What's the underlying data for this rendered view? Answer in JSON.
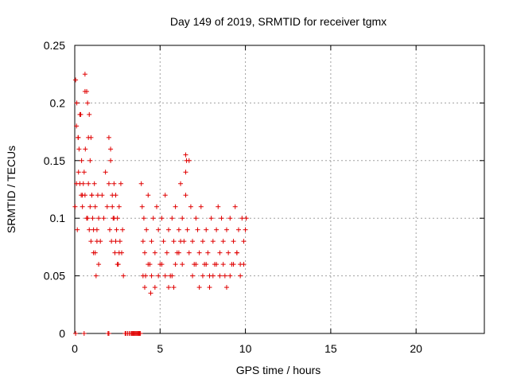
{
  "chart_data": {
    "type": "scatter",
    "title": "Day 149 of 2019, SRMTID for receiver tgmx",
    "xlabel": "GPS time / hours",
    "ylabel": "SRMTID / TECUs",
    "xlim": [
      0,
      24
    ],
    "ylim": [
      0,
      0.25
    ],
    "xticks": [
      0,
      5,
      10,
      15,
      20
    ],
    "xtick_labels": [
      "0",
      "5",
      "10",
      "15",
      "20"
    ],
    "yticks": [
      0,
      0.05,
      0.1,
      0.15,
      0.2,
      0.25
    ],
    "ytick_labels": [
      "0",
      "0.05",
      "0.1",
      "0.15",
      "0.2",
      "0.25"
    ],
    "grid": true,
    "marker": "+",
    "color": "#e00000",
    "series": [
      {
        "name": "SRMTID",
        "x": [
          0.02,
          0.05,
          0.1,
          0.12,
          0.15,
          0.2,
          0.22,
          0.25,
          0.3,
          0.35,
          0.38,
          0.4,
          0.45,
          0.5,
          0.55,
          0.6,
          0.62,
          0.7,
          0.75,
          0.8,
          0.85,
          0.9,
          0.95,
          1.0,
          1.05,
          1.1,
          1.15,
          1.2,
          1.25,
          1.3,
          1.35,
          1.4,
          1.5,
          1.6,
          1.7,
          1.8,
          1.9,
          2.0,
          2.05,
          2.1,
          2.15,
          2.2,
          2.25,
          2.3,
          2.35,
          2.4,
          2.45,
          2.5,
          2.55,
          2.6,
          2.65,
          2.7,
          2.75,
          2.8,
          2.85,
          3.1,
          3.2,
          3.3,
          3.4,
          3.5,
          3.6,
          3.7,
          3.8,
          3.85,
          3.9,
          3.95,
          4.0,
          4.05,
          4.1,
          4.15,
          4.2,
          4.3,
          4.4,
          4.5,
          4.6,
          4.7,
          4.8,
          4.9,
          5.0,
          5.1,
          5.2,
          5.3,
          5.4,
          5.5,
          5.6,
          5.7,
          5.8,
          5.9,
          6.0,
          6.1,
          6.2,
          6.3,
          6.4,
          6.5,
          6.6,
          6.7,
          6.8,
          6.9,
          7.0,
          7.1,
          7.2,
          7.3,
          7.4,
          7.5,
          7.6,
          7.7,
          7.8,
          7.9,
          8.0,
          8.1,
          8.2,
          8.3,
          8.4,
          8.5,
          8.6,
          8.7,
          8.8,
          8.9,
          9.0,
          9.1,
          9.2,
          9.3,
          9.4,
          9.5,
          9.6,
          9.7,
          9.8,
          9.9,
          10.0,
          10.05,
          0.1,
          0.2,
          0.3,
          0.45,
          0.6,
          0.7,
          0.8,
          0.9,
          1.0,
          1.1,
          1.2,
          1.3,
          1.4,
          2.0,
          2.1,
          2.2,
          2.3,
          2.4,
          2.5,
          2.6,
          4.0,
          4.1,
          4.3,
          4.5,
          4.7,
          4.9,
          5.1,
          5.3,
          5.5,
          5.7,
          5.9,
          6.1,
          6.2,
          6.3,
          6.5,
          6.7,
          6.9,
          7.1,
          7.3,
          7.5,
          7.7,
          7.9,
          8.1,
          8.3,
          8.5,
          8.7,
          8.9,
          9.1,
          9.3,
          9.5,
          9.7,
          9.9,
          0.6,
          0.75,
          0.85,
          0.95,
          6.5,
          6.55,
          5.8,
          4.45,
          3.2,
          3.35,
          3.45,
          3.55,
          3.65,
          3.75,
          3.0,
          3.1,
          2.95,
          2.0,
          0.05,
          0.55,
          1.95
        ],
        "y": [
          0.11,
          0.22,
          0.18,
          0.2,
          0.09,
          0.17,
          0.14,
          0.16,
          0.13,
          0.19,
          0.12,
          0.15,
          0.11,
          0.13,
          0.14,
          0.12,
          0.16,
          0.21,
          0.1,
          0.13,
          0.09,
          0.11,
          0.08,
          0.12,
          0.1,
          0.07,
          0.13,
          0.11,
          0.05,
          0.09,
          0.12,
          0.1,
          0.08,
          0.12,
          0.1,
          0.14,
          0.11,
          0.13,
          0.09,
          0.15,
          0.08,
          0.11,
          0.1,
          0.13,
          0.07,
          0.12,
          0.09,
          0.1,
          0.06,
          0.11,
          0.08,
          0.13,
          0.07,
          0.09,
          0.05,
          0.0,
          0.0,
          0.0,
          0.0,
          0.0,
          0.0,
          0.0,
          0.0,
          0.0,
          0.13,
          0.11,
          0.08,
          0.1,
          0.07,
          0.05,
          0.09,
          0.12,
          0.06,
          0.08,
          0.1,
          0.07,
          0.11,
          0.09,
          0.06,
          0.1,
          0.08,
          0.12,
          0.07,
          0.09,
          0.05,
          0.1,
          0.08,
          0.11,
          0.07,
          0.09,
          0.13,
          0.1,
          0.08,
          0.12,
          0.09,
          0.07,
          0.11,
          0.08,
          0.06,
          0.1,
          0.09,
          0.07,
          0.11,
          0.08,
          0.06,
          0.09,
          0.07,
          0.05,
          0.1,
          0.08,
          0.06,
          0.09,
          0.11,
          0.07,
          0.1,
          0.08,
          0.05,
          0.09,
          0.07,
          0.1,
          0.06,
          0.08,
          0.11,
          0.07,
          0.09,
          0.06,
          0.1,
          0.08,
          0.09,
          0.1,
          0.13,
          0.17,
          0.19,
          0.12,
          0.21,
          0.1,
          0.17,
          0.15,
          0.12,
          0.09,
          0.07,
          0.08,
          0.06,
          0.17,
          0.16,
          0.12,
          0.1,
          0.08,
          0.06,
          0.07,
          0.05,
          0.04,
          0.06,
          0.05,
          0.04,
          0.05,
          0.06,
          0.05,
          0.04,
          0.05,
          0.06,
          0.07,
          0.08,
          0.06,
          0.14,
          0.15,
          0.05,
          0.06,
          0.04,
          0.05,
          0.06,
          0.04,
          0.05,
          0.06,
          0.05,
          0.06,
          0.04,
          0.05,
          0.06,
          0.07,
          0.05,
          0.06,
          0.225,
          0.2,
          0.19,
          0.17,
          0.155,
          0.15,
          0.04,
          0.035,
          0.0,
          0.0,
          0.0,
          0.0,
          0.0,
          0.0,
          0.0,
          0.0,
          0.0,
          0.0,
          0.0,
          0.0,
          0.0
        ]
      }
    ]
  }
}
